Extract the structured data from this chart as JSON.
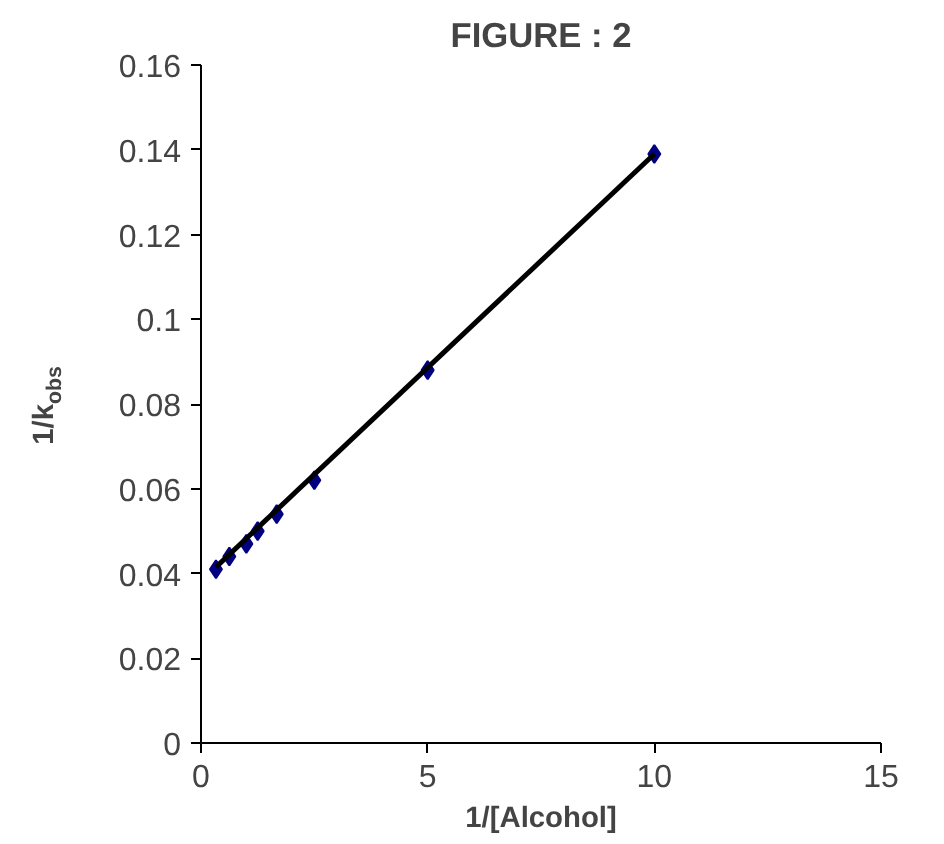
{
  "chart_data": {
    "type": "scatter",
    "title": "FIGURE : 2",
    "xlabel": "1/[Alcohol]",
    "ylabel": "1/k$_{obs}$",
    "xlim": [
      0,
      15
    ],
    "xticks": [
      0,
      5,
      10,
      15
    ],
    "ylim": [
      0,
      0.16
    ],
    "yticks": [
      0,
      0.02,
      0.04,
      0.06,
      0.08,
      0.1,
      0.12,
      0.14,
      0.16
    ],
    "grid": false,
    "series": [
      {
        "marker": "diamond",
        "color": "#000080",
        "x": [
          0.33,
          0.625,
          1,
          1.25,
          1.67,
          2.5,
          5,
          10
        ],
        "values": [
          0.041,
          0.044,
          0.047,
          0.05,
          0.054,
          0.062,
          0.088,
          0.139
        ]
      },
      {
        "type": "line",
        "color": "#000000",
        "line_style": "solid",
        "x": [
          0.33,
          10
        ],
        "values": [
          0.0415,
          0.139
        ]
      }
    ]
  }
}
